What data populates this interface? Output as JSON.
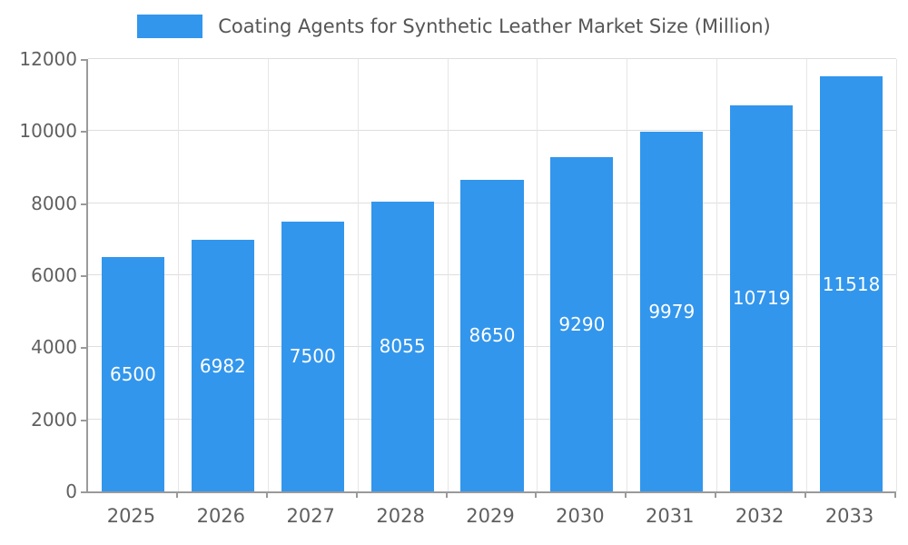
{
  "chart_data": {
    "type": "bar",
    "title": "Coating Agents for Synthetic Leather Market Size (Million)",
    "categories": [
      "2025",
      "2026",
      "2027",
      "2028",
      "2029",
      "2030",
      "2031",
      "2032",
      "2033"
    ],
    "values": [
      6500,
      6982,
      7500,
      8055,
      8650,
      9290,
      9979,
      10719,
      11518
    ],
    "xlabel": "",
    "ylabel": "",
    "ylim": [
      0,
      12000
    ],
    "ytick_step": 2000,
    "grid": "on",
    "legend_position": "top",
    "bar_color": "#3296ed",
    "value_label_color": "#ffffff",
    "axis_color": "#9a9a9a",
    "gridline_color": "#dedede",
    "text_color": "#606060"
  },
  "legend": {
    "label": "Coating Agents for Synthetic Leather Market Size (Million)"
  }
}
